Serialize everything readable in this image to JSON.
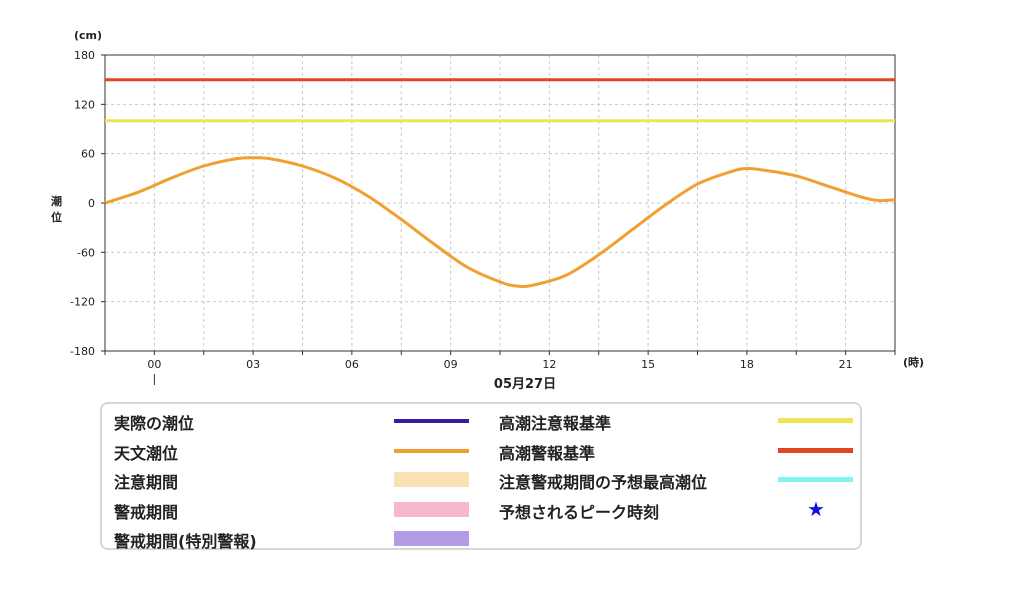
{
  "chart_data": {
    "type": "line",
    "y_unit": "(cm)",
    "ylabel": "潮位",
    "x_unit": "(時)",
    "date_label": "05月27日",
    "ylim": [
      -180,
      180
    ],
    "yticks": [
      180,
      120,
      60,
      0,
      -60,
      -120,
      -180
    ],
    "xlim": [
      -1.5,
      22.5
    ],
    "xticks": [
      {
        "h": 0,
        "label": "00"
      },
      {
        "h": 3,
        "label": "03"
      },
      {
        "h": 6,
        "label": "06"
      },
      {
        "h": 9,
        "label": "09"
      },
      {
        "h": 12,
        "label": "12"
      },
      {
        "h": 15,
        "label": "15"
      },
      {
        "h": 18,
        "label": "18"
      },
      {
        "h": 21,
        "label": "21"
      }
    ],
    "grid": true,
    "series": [
      {
        "name": "天文潮位",
        "color": "#f0a030",
        "x": [
          -1.5,
          -0.5,
          0.5,
          1.5,
          2.5,
          3.0,
          3.5,
          4.5,
          5.5,
          6.5,
          7.5,
          8.5,
          9.5,
          10.5,
          11.0,
          11.5,
          12.5,
          13.5,
          14.5,
          15.5,
          16.5,
          17.5,
          18.0,
          18.5,
          19.5,
          20.5,
          21.5,
          22.0,
          22.5
        ],
        "y": [
          0,
          13,
          30,
          45,
          54,
          55,
          54,
          45,
          30,
          8,
          -20,
          -50,
          -78,
          -96,
          -101,
          -100,
          -88,
          -63,
          -33,
          -3,
          23,
          38,
          42,
          40,
          33,
          20,
          7,
          3,
          4
        ]
      },
      {
        "name": "高潮注意報基準",
        "color": "#eee552",
        "x": [
          -1.5,
          22.5
        ],
        "y": [
          100,
          100
        ]
      },
      {
        "name": "高潮警報基準",
        "color": "#e04525",
        "x": [
          -1.5,
          22.5
        ],
        "y": [
          150,
          150
        ]
      }
    ]
  },
  "legend": {
    "items": [
      {
        "label": "実際の潮位",
        "kind": "line",
        "color": "#3a1a9a"
      },
      {
        "label": "天文潮位",
        "kind": "line",
        "color": "#f0a030"
      },
      {
        "label": "注意期間",
        "kind": "band",
        "color": "#f9e1b5"
      },
      {
        "label": "警戒期間",
        "kind": "band",
        "color": "#f6b8cc"
      },
      {
        "label": "警戒期間(特別警報)",
        "kind": "band",
        "color": "#b39ce6"
      },
      {
        "label": "高潮注意報基準",
        "kind": "line",
        "color": "#eee552"
      },
      {
        "label": "高潮警報基準",
        "kind": "line",
        "color": "#e04525"
      },
      {
        "label": "注意警戒期間の予想最高潮位",
        "kind": "line",
        "color": "#7ef6f6"
      },
      {
        "label": "予想されるピーク時刻",
        "kind": "star",
        "color": "#1010e0"
      }
    ]
  }
}
